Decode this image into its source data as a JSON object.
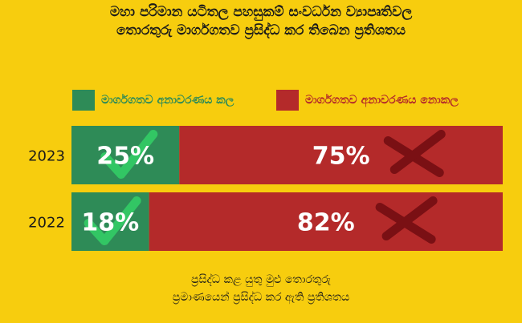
{
  "title_line1": "මහා පරිමාන යටිතල පහසුකම් සංවර්ධන ව්‍යාපෘතිවල",
  "title_line2": "තොරතුරු මාර්ගගතව ප්‍රසිද්ධ කර තිබෙන ප්‍රතිශතය",
  "footer_line1": "ප්‍රසිද්ධ කළ යුතු මුළු තොරතුරු",
  "footer_line2": "ප්‍රමාණයෙන් ප්‍රසිද්ධ කර ඇති ප්‍රතිශතය",
  "colors": {
    "background": "#f7cd0e",
    "disclosed": "#2e8b57",
    "not_disclosed": "#b42a2a",
    "check": "#33cc66",
    "cross": "#7a1014"
  },
  "icons": {
    "disclosed": "check-mark-icon",
    "not_disclosed": "cross-mark-icon"
  },
  "chart_data": {
    "type": "bar",
    "orientation": "horizontal",
    "stacked": true,
    "categories": [
      "2023",
      "2022"
    ],
    "series": [
      {
        "name": "මාර්ගගතව අනාවරණය කල",
        "values": [
          25,
          18
        ],
        "labels": [
          "25%",
          "18%"
        ]
      },
      {
        "name": "මාර්ගගතව අනාවරණය නොකල",
        "values": [
          75,
          82
        ],
        "labels": [
          "75%",
          "82%"
        ]
      }
    ],
    "xlim": [
      0,
      100
    ],
    "legend": "top"
  }
}
